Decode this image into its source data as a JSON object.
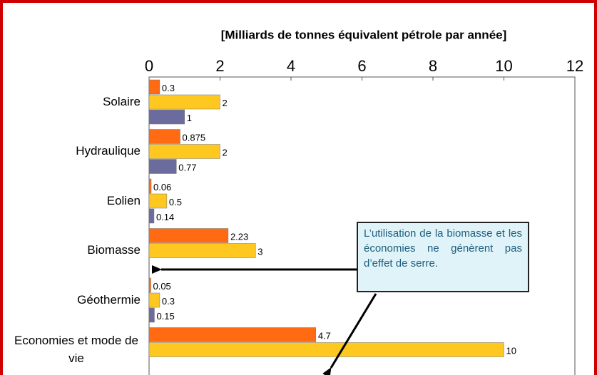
{
  "chart_data": {
    "type": "bar",
    "orientation": "horizontal",
    "title": "[Milliards de tonnes équivalent pétrole par année]",
    "categories": [
      "Solaire",
      "Hydraulique",
      "Eolien",
      "Biomasse",
      "Géothermie",
      "Economies et mode de vie"
    ],
    "series": [
      {
        "color": "#ff6a13",
        "values": [
          0.3,
          0.875,
          0.06,
          2.23,
          0.05,
          4.7
        ]
      },
      {
        "color": "#ffc820",
        "values": [
          2,
          2,
          0.5,
          3,
          0.3,
          10
        ]
      },
      {
        "color": "#6b6b9e",
        "values": [
          1,
          0.77,
          0.14,
          null,
          0.15,
          null
        ]
      }
    ],
    "xlim": [
      0,
      12
    ],
    "xticks": [
      0,
      2,
      4,
      6,
      8,
      10,
      12
    ],
    "grid": false,
    "annotation": "L’utilisation de la biomasse et les économies ne génèrent pas d’effet de serre."
  }
}
